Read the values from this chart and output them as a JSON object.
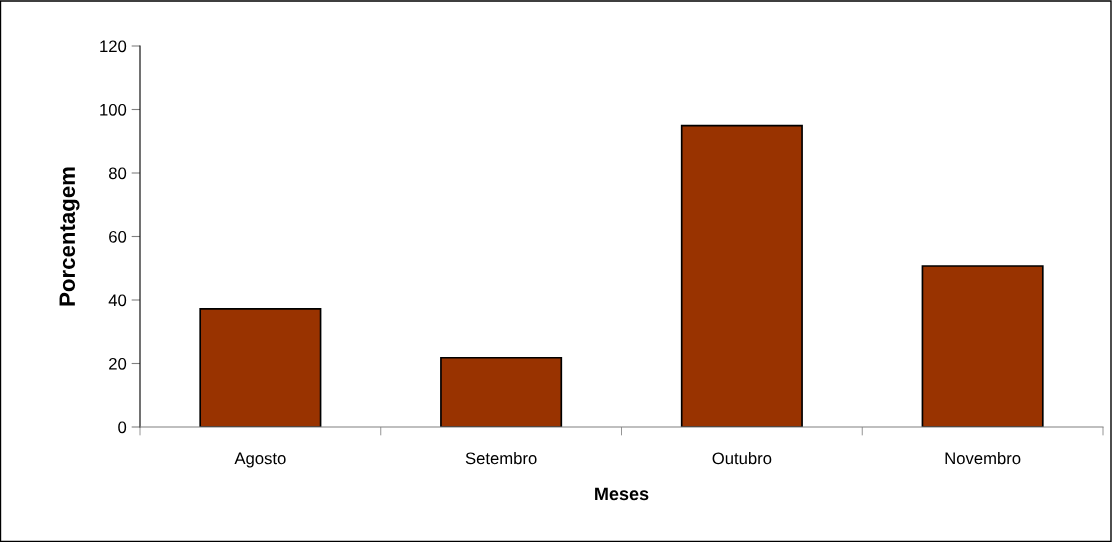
{
  "chart_data": {
    "type": "bar",
    "xlabel": "Meses",
    "ylabel": "Porcentagem",
    "categories": [
      "Agosto",
      "Setembro",
      "Outubro",
      "Novembro"
    ],
    "values": [
      37.2,
      21.8,
      94.9,
      50.7
    ],
    "color": "#993300",
    "ylim": [
      0,
      120
    ],
    "yticks": [
      0,
      20,
      40,
      60,
      80,
      100,
      120
    ],
    "grid": false,
    "legend": false
  }
}
